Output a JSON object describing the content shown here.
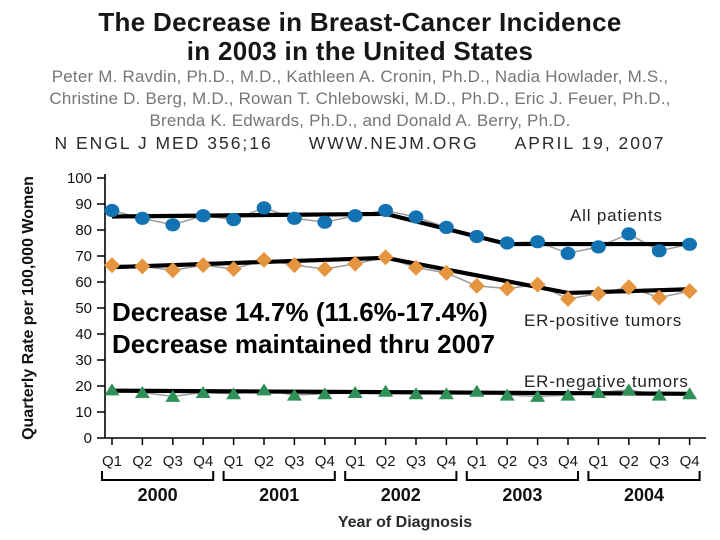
{
  "slide": {
    "title_line1": "The Decrease in Breast-Cancer Incidence",
    "title_line2": "in 2003 in the United States",
    "authors": [
      "Peter M. Ravdin, Ph.D., M.D., Kathleen A. Cronin, Ph.D., Nadia Howlader, M.S.,",
      "Christine D. Berg, M.D., Rowan T. Chlebowski, M.D., Ph.D., Eric J. Feuer, Ph.D.,",
      "Brenda K. Edwards, Ph.D., and Donald A. Berry, Ph.D."
    ],
    "citation_parts": [
      "N ENGL J MED 356;16",
      "WWW.NEJM.ORG",
      "APRIL 19, 2007"
    ],
    "annotation_line1": "Decrease 14.7% (11.6%-17.4%)",
    "annotation_line2": "Decrease maintained thru 2007"
  },
  "chart_data": {
    "type": "line",
    "title": "",
    "xlabel": "Year of Diagnosis",
    "ylabel": "Quarterly Rate per 100,000 Women",
    "ylim": [
      0,
      100
    ],
    "yticks": [
      0,
      10,
      20,
      30,
      40,
      50,
      60,
      70,
      80,
      90,
      100
    ],
    "grid": false,
    "quarter_labels": [
      "Q1",
      "Q2",
      "Q3",
      "Q4"
    ],
    "years": [
      "2000",
      "2001",
      "2002",
      "2003",
      "2004"
    ],
    "series": [
      {
        "name": "All patients",
        "marker": "circle",
        "color": "#1272b2",
        "values": [
          87.5,
          84.5,
          82,
          85.5,
          84,
          88.5,
          84.5,
          83,
          85.5,
          87.5,
          85,
          81,
          77.5,
          75,
          75.5,
          71,
          73.5,
          78.5,
          72,
          74.5
        ]
      },
      {
        "name": "ER-positive tumors",
        "marker": "diamond",
        "color": "#e5953f",
        "values": [
          66.5,
          66,
          64.5,
          66.5,
          65,
          68.5,
          66.5,
          65,
          67,
          69.5,
          65.5,
          63.5,
          58.5,
          57.5,
          59,
          53.5,
          55.5,
          58,
          54,
          56.5
        ]
      },
      {
        "name": "ER-negative tumors",
        "marker": "triangle",
        "color": "#2f9058",
        "values": [
          18.5,
          17.5,
          16,
          17.5,
          17,
          18.5,
          16.5,
          17,
          17.5,
          18,
          17,
          17,
          18,
          16.5,
          16,
          16.5,
          17.5,
          18.5,
          16.5,
          17
        ]
      }
    ],
    "trend_lines": [
      {
        "series": "All patients",
        "points": [
          [
            0,
            85.2
          ],
          [
            9,
            86.2
          ],
          [
            13,
            74.6
          ],
          [
            19,
            74.6
          ]
        ]
      },
      {
        "series": "ER-positive tumors",
        "points": [
          [
            0,
            65.7
          ],
          [
            9,
            69.3
          ],
          [
            15,
            55.8
          ],
          [
            19,
            57.2
          ]
        ]
      },
      {
        "series": "ER-negative tumors",
        "points": [
          [
            0,
            18.2
          ],
          [
            19,
            17.0
          ]
        ]
      }
    ],
    "trend_color": "#000000",
    "connector_color": "#9b9b9b",
    "legend_position": "inline-right"
  }
}
